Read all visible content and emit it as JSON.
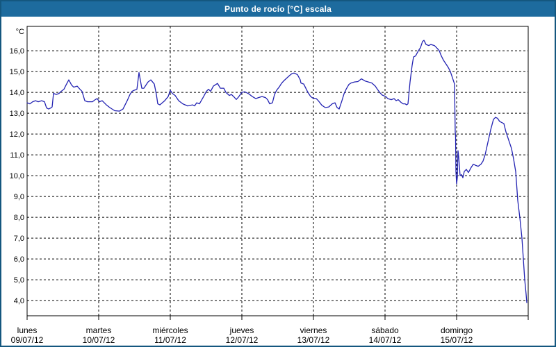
{
  "header": {
    "title": "Punto de rocío [°C] escala"
  },
  "colors": {
    "titlebar_bg": "#1d6b9e",
    "window_border": "#14577f",
    "line": "#2222b2",
    "grid": "#000000",
    "plot_bg": "#ffffff",
    "text": "#000000"
  },
  "chart_data": {
    "type": "line",
    "title": "Punto de rocío [°C] escala",
    "xlabel": "",
    "ylabel": "°C",
    "ylim": [
      3.27,
      17.17
    ],
    "grid": "dashed",
    "legend": "none",
    "y_ticks": [
      {
        "value": 16,
        "label": "16,0"
      },
      {
        "value": 15,
        "label": "15,0"
      },
      {
        "value": 14,
        "label": "14,0"
      },
      {
        "value": 13,
        "label": "13,0"
      },
      {
        "value": 12,
        "label": "12,0"
      },
      {
        "value": 11,
        "label": "11,0"
      },
      {
        "value": 10,
        "label": "10,0"
      },
      {
        "value": 9,
        "label": "9,0"
      },
      {
        "value": 8,
        "label": "8,0"
      },
      {
        "value": 7,
        "label": "7,0"
      },
      {
        "value": 6,
        "label": "6,0"
      },
      {
        "value": 5,
        "label": "5,0"
      },
      {
        "value": 4,
        "label": "4,0"
      }
    ],
    "x_days": [
      {
        "name": "lunes",
        "date": "09/07/12"
      },
      {
        "name": "martes",
        "date": "10/07/12"
      },
      {
        "name": "miércoles",
        "date": "11/07/12"
      },
      {
        "name": "jueves",
        "date": "12/07/12"
      },
      {
        "name": "viernes",
        "date": "13/07/12"
      },
      {
        "name": "sábado",
        "date": "14/07/12"
      },
      {
        "name": "domingo",
        "date": "15/07/12"
      }
    ],
    "series": [
      {
        "name": "Punto de rocío [°C]",
        "color": "#2222b2",
        "points": [
          [
            0.0,
            13.5
          ],
          [
            0.039,
            13.45
          ],
          [
            0.078,
            13.55
          ],
          [
            0.117,
            13.6
          ],
          [
            0.155,
            13.55
          ],
          [
            0.204,
            13.6
          ],
          [
            0.243,
            13.55
          ],
          [
            0.272,
            13.25
          ],
          [
            0.301,
            13.2
          ],
          [
            0.33,
            13.25
          ],
          [
            0.35,
            13.3
          ],
          [
            0.369,
            13.95
          ],
          [
            0.408,
            13.9
          ],
          [
            0.447,
            13.95
          ],
          [
            0.476,
            14.05
          ],
          [
            0.515,
            14.15
          ],
          [
            0.544,
            14.35
          ],
          [
            0.583,
            14.6
          ],
          [
            0.621,
            14.35
          ],
          [
            0.65,
            14.25
          ],
          [
            0.699,
            14.3
          ],
          [
            0.738,
            14.15
          ],
          [
            0.767,
            14.05
          ],
          [
            0.806,
            13.6
          ],
          [
            0.845,
            13.55
          ],
          [
            0.913,
            13.55
          ],
          [
            0.951,
            13.65
          ],
          [
            0.98,
            13.7
          ],
          [
            1.01,
            13.55
          ],
          [
            1.049,
            13.6
          ],
          [
            1.107,
            13.4
          ],
          [
            1.155,
            13.27
          ],
          [
            1.223,
            13.12
          ],
          [
            1.291,
            13.1
          ],
          [
            1.34,
            13.2
          ],
          [
            1.369,
            13.4
          ],
          [
            1.398,
            13.6
          ],
          [
            1.437,
            13.9
          ],
          [
            1.466,
            14.05
          ],
          [
            1.495,
            14.1
          ],
          [
            1.534,
            14.15
          ],
          [
            1.563,
            14.95
          ],
          [
            1.582,
            14.6
          ],
          [
            1.602,
            14.2
          ],
          [
            1.631,
            14.2
          ],
          [
            1.689,
            14.5
          ],
          [
            1.728,
            14.6
          ],
          [
            1.777,
            14.4
          ],
          [
            1.806,
            13.9
          ],
          [
            1.825,
            13.45
          ],
          [
            1.854,
            13.4
          ],
          [
            1.922,
            13.6
          ],
          [
            1.971,
            13.8
          ],
          [
            2.0,
            14.1
          ],
          [
            2.029,
            13.95
          ],
          [
            2.068,
            13.85
          ],
          [
            2.117,
            13.6
          ],
          [
            2.175,
            13.45
          ],
          [
            2.243,
            13.35
          ],
          [
            2.311,
            13.4
          ],
          [
            2.34,
            13.35
          ],
          [
            2.369,
            13.5
          ],
          [
            2.408,
            13.45
          ],
          [
            2.466,
            13.8
          ],
          [
            2.505,
            14.05
          ],
          [
            2.534,
            14.15
          ],
          [
            2.563,
            14.05
          ],
          [
            2.602,
            14.3
          ],
          [
            2.66,
            14.43
          ],
          [
            2.699,
            14.2
          ],
          [
            2.748,
            14.2
          ],
          [
            2.777,
            14.0
          ],
          [
            2.825,
            13.85
          ],
          [
            2.854,
            13.9
          ],
          [
            2.893,
            13.77
          ],
          [
            2.922,
            13.66
          ],
          [
            2.951,
            13.77
          ],
          [
            3.0,
            14.0
          ],
          [
            3.039,
            14.03
          ],
          [
            3.097,
            13.93
          ],
          [
            3.146,
            13.8
          ],
          [
            3.194,
            13.7
          ],
          [
            3.233,
            13.75
          ],
          [
            3.282,
            13.8
          ],
          [
            3.33,
            13.75
          ],
          [
            3.359,
            13.65
          ],
          [
            3.388,
            13.45
          ],
          [
            3.427,
            13.5
          ],
          [
            3.456,
            13.9
          ],
          [
            3.485,
            14.1
          ],
          [
            3.524,
            14.27
          ],
          [
            3.553,
            14.43
          ],
          [
            3.582,
            14.54
          ],
          [
            3.631,
            14.7
          ],
          [
            3.67,
            14.82
          ],
          [
            3.699,
            14.9
          ],
          [
            3.728,
            14.93
          ],
          [
            3.748,
            14.9
          ],
          [
            3.777,
            14.85
          ],
          [
            3.816,
            14.6
          ],
          [
            3.825,
            14.45
          ],
          [
            3.864,
            14.4
          ],
          [
            3.893,
            14.2
          ],
          [
            3.922,
            14.0
          ],
          [
            3.961,
            13.8
          ],
          [
            3.99,
            13.73
          ],
          [
            4.039,
            13.7
          ],
          [
            4.068,
            13.6
          ],
          [
            4.117,
            13.38
          ],
          [
            4.165,
            13.27
          ],
          [
            4.214,
            13.3
          ],
          [
            4.262,
            13.45
          ],
          [
            4.301,
            13.5
          ],
          [
            4.33,
            13.27
          ],
          [
            4.359,
            13.2
          ],
          [
            4.398,
            13.6
          ],
          [
            4.427,
            13.93
          ],
          [
            4.456,
            14.15
          ],
          [
            4.495,
            14.38
          ],
          [
            4.524,
            14.45
          ],
          [
            4.573,
            14.5
          ],
          [
            4.621,
            14.52
          ],
          [
            4.67,
            14.65
          ],
          [
            4.718,
            14.55
          ],
          [
            4.767,
            14.5
          ],
          [
            4.816,
            14.45
          ],
          [
            4.864,
            14.3
          ],
          [
            4.893,
            14.15
          ],
          [
            4.932,
            13.97
          ],
          [
            4.961,
            13.87
          ],
          [
            5.01,
            13.8
          ],
          [
            5.039,
            13.7
          ],
          [
            5.087,
            13.65
          ],
          [
            5.126,
            13.7
          ],
          [
            5.155,
            13.6
          ],
          [
            5.184,
            13.65
          ],
          [
            5.223,
            13.52
          ],
          [
            5.252,
            13.45
          ],
          [
            5.282,
            13.45
          ],
          [
            5.301,
            13.4
          ],
          [
            5.32,
            13.45
          ],
          [
            5.35,
            14.5
          ],
          [
            5.379,
            15.3
          ],
          [
            5.398,
            15.7
          ],
          [
            5.427,
            15.75
          ],
          [
            5.466,
            16.0
          ],
          [
            5.495,
            16.15
          ],
          [
            5.524,
            16.45
          ],
          [
            5.544,
            16.5
          ],
          [
            5.573,
            16.3
          ],
          [
            5.612,
            16.25
          ],
          [
            5.641,
            16.3
          ],
          [
            5.689,
            16.25
          ],
          [
            5.718,
            16.15
          ],
          [
            5.757,
            16.0
          ],
          [
            5.786,
            15.75
          ],
          [
            5.816,
            15.55
          ],
          [
            5.854,
            15.35
          ],
          [
            5.883,
            15.2
          ],
          [
            5.913,
            15.0
          ],
          [
            5.932,
            14.8
          ],
          [
            5.951,
            14.6
          ],
          [
            5.971,
            14.4
          ],
          [
            5.981,
            12.1
          ],
          [
            5.985,
            11.9
          ],
          [
            5.99,
            10.2
          ],
          [
            6.0,
            9.6
          ],
          [
            6.01,
            9.9
          ],
          [
            6.019,
            11.2
          ],
          [
            6.029,
            10.9
          ],
          [
            6.049,
            10.0
          ],
          [
            6.068,
            10.05
          ],
          [
            6.087,
            9.9
          ],
          [
            6.107,
            10.2
          ],
          [
            6.136,
            10.3
          ],
          [
            6.165,
            10.15
          ],
          [
            6.204,
            10.4
          ],
          [
            6.233,
            10.55
          ],
          [
            6.262,
            10.5
          ],
          [
            6.301,
            10.45
          ],
          [
            6.34,
            10.55
          ],
          [
            6.369,
            10.7
          ],
          [
            6.398,
            11.0
          ],
          [
            6.437,
            11.6
          ],
          [
            6.476,
            12.2
          ],
          [
            6.515,
            12.7
          ],
          [
            6.544,
            12.8
          ],
          [
            6.573,
            12.75
          ],
          [
            6.602,
            12.6
          ],
          [
            6.631,
            12.55
          ],
          [
            6.66,
            12.5
          ],
          [
            6.689,
            12.1
          ],
          [
            6.728,
            11.7
          ],
          [
            6.767,
            11.3
          ],
          [
            6.796,
            10.8
          ],
          [
            6.825,
            10.2
          ],
          [
            6.854,
            8.8
          ],
          [
            6.883,
            8.0
          ],
          [
            6.913,
            7.0
          ],
          [
            6.932,
            6.0
          ],
          [
            6.951,
            5.0
          ],
          [
            6.971,
            4.3
          ],
          [
            6.981,
            3.9
          ]
        ]
      }
    ]
  }
}
